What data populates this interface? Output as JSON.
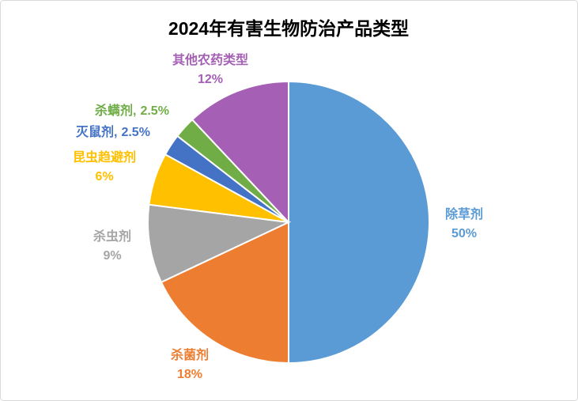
{
  "chart_data": {
    "type": "pie",
    "title": "2024年有害生物防治产品类型",
    "categories": [
      "除草剂",
      "杀菌剂",
      "杀虫剂",
      "昆虫趋避剂",
      "灭鼠剂,",
      "杀螨剂,",
      "其他农药类型"
    ],
    "values": [
      50,
      18,
      9,
      6,
      2.5,
      2.5,
      12
    ],
    "value_labels": [
      "50%",
      "18%",
      "9%",
      "6%",
      "2.5%",
      "2.5%",
      "12%"
    ],
    "colors": [
      "#5b9bd5",
      "#ed7d31",
      "#a5a5a5",
      "#ffc000",
      "#4472c4",
      "#70ad47",
      "#a55fb4"
    ]
  }
}
